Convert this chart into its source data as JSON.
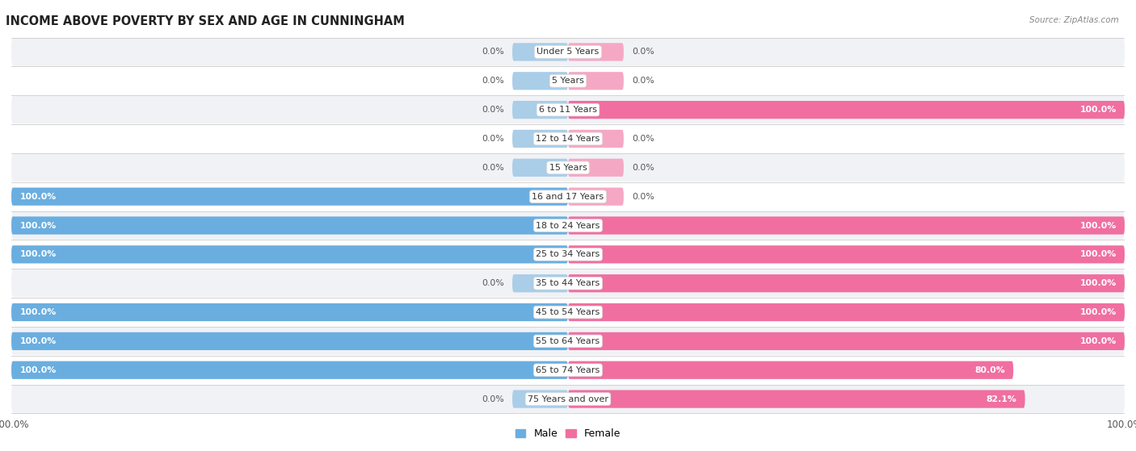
{
  "title": "INCOME ABOVE POVERTY BY SEX AND AGE IN CUNNINGHAM",
  "source": "Source: ZipAtlas.com",
  "categories": [
    "Under 5 Years",
    "5 Years",
    "6 to 11 Years",
    "12 to 14 Years",
    "15 Years",
    "16 and 17 Years",
    "18 to 24 Years",
    "25 to 34 Years",
    "35 to 44 Years",
    "45 to 54 Years",
    "55 to 64 Years",
    "65 to 74 Years",
    "75 Years and over"
  ],
  "male": [
    0.0,
    0.0,
    0.0,
    0.0,
    0.0,
    100.0,
    100.0,
    100.0,
    0.0,
    100.0,
    100.0,
    100.0,
    0.0
  ],
  "female": [
    0.0,
    0.0,
    100.0,
    0.0,
    0.0,
    0.0,
    100.0,
    100.0,
    100.0,
    100.0,
    100.0,
    80.0,
    82.1
  ],
  "male_color_full": "#6aaee0",
  "female_color_full": "#f06fa0",
  "male_color_stub": "#aacde8",
  "female_color_stub": "#f5a8c4",
  "row_bg_light": "#f0f2f5",
  "row_bg_white": "#ffffff",
  "bar_height": 0.62,
  "stub_size": 10.0,
  "xlim": 100,
  "title_fontsize": 10.5,
  "label_fontsize": 8.0,
  "value_fontsize": 7.8
}
